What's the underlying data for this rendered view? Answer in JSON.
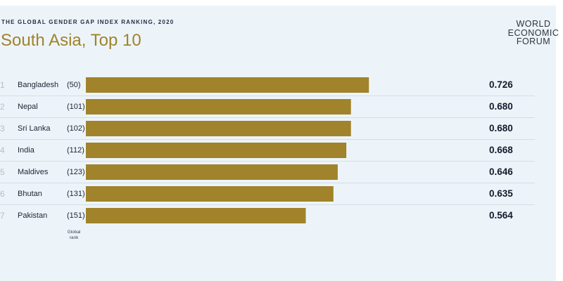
{
  "header": {
    "kicker": "THE GLOBAL GENDER GAP INDEX RANKING, 2020",
    "title": "South Asia, Top 10"
  },
  "logo": {
    "lines": [
      "WORLD",
      "ECONOMIC",
      "FORUM"
    ]
  },
  "axis_note": [
    "Global",
    "rank"
  ],
  "colors": {
    "bar": "#a0832a",
    "title": "#a0832a",
    "background": "#edf4f9"
  },
  "chart_data": {
    "type": "bar",
    "orientation": "horizontal",
    "title": "South Asia, Top 10",
    "subtitle": "THE GLOBAL GENDER GAP INDEX RANKING, 2020",
    "categories": [
      "Bangladesh",
      "Nepal",
      "Sri Lanka",
      "India",
      "Maldives",
      "Bhutan",
      "Pakistan"
    ],
    "regional_rank": [
      "1",
      "2",
      "3",
      "4",
      "5",
      "6",
      "7"
    ],
    "global_rank": [
      "(50)",
      "(101)",
      "(102)",
      "(112)",
      "(123)",
      "(131)",
      "(151)"
    ],
    "values": [
      0.726,
      0.68,
      0.68,
      0.668,
      0.646,
      0.635,
      0.564
    ],
    "value_labels": [
      "0.726",
      "0.680",
      "0.680",
      "0.668",
      "0.646",
      "0.635",
      "0.564"
    ],
    "xlim": [
      0,
      1
    ],
    "grid": false,
    "legend": "none"
  }
}
